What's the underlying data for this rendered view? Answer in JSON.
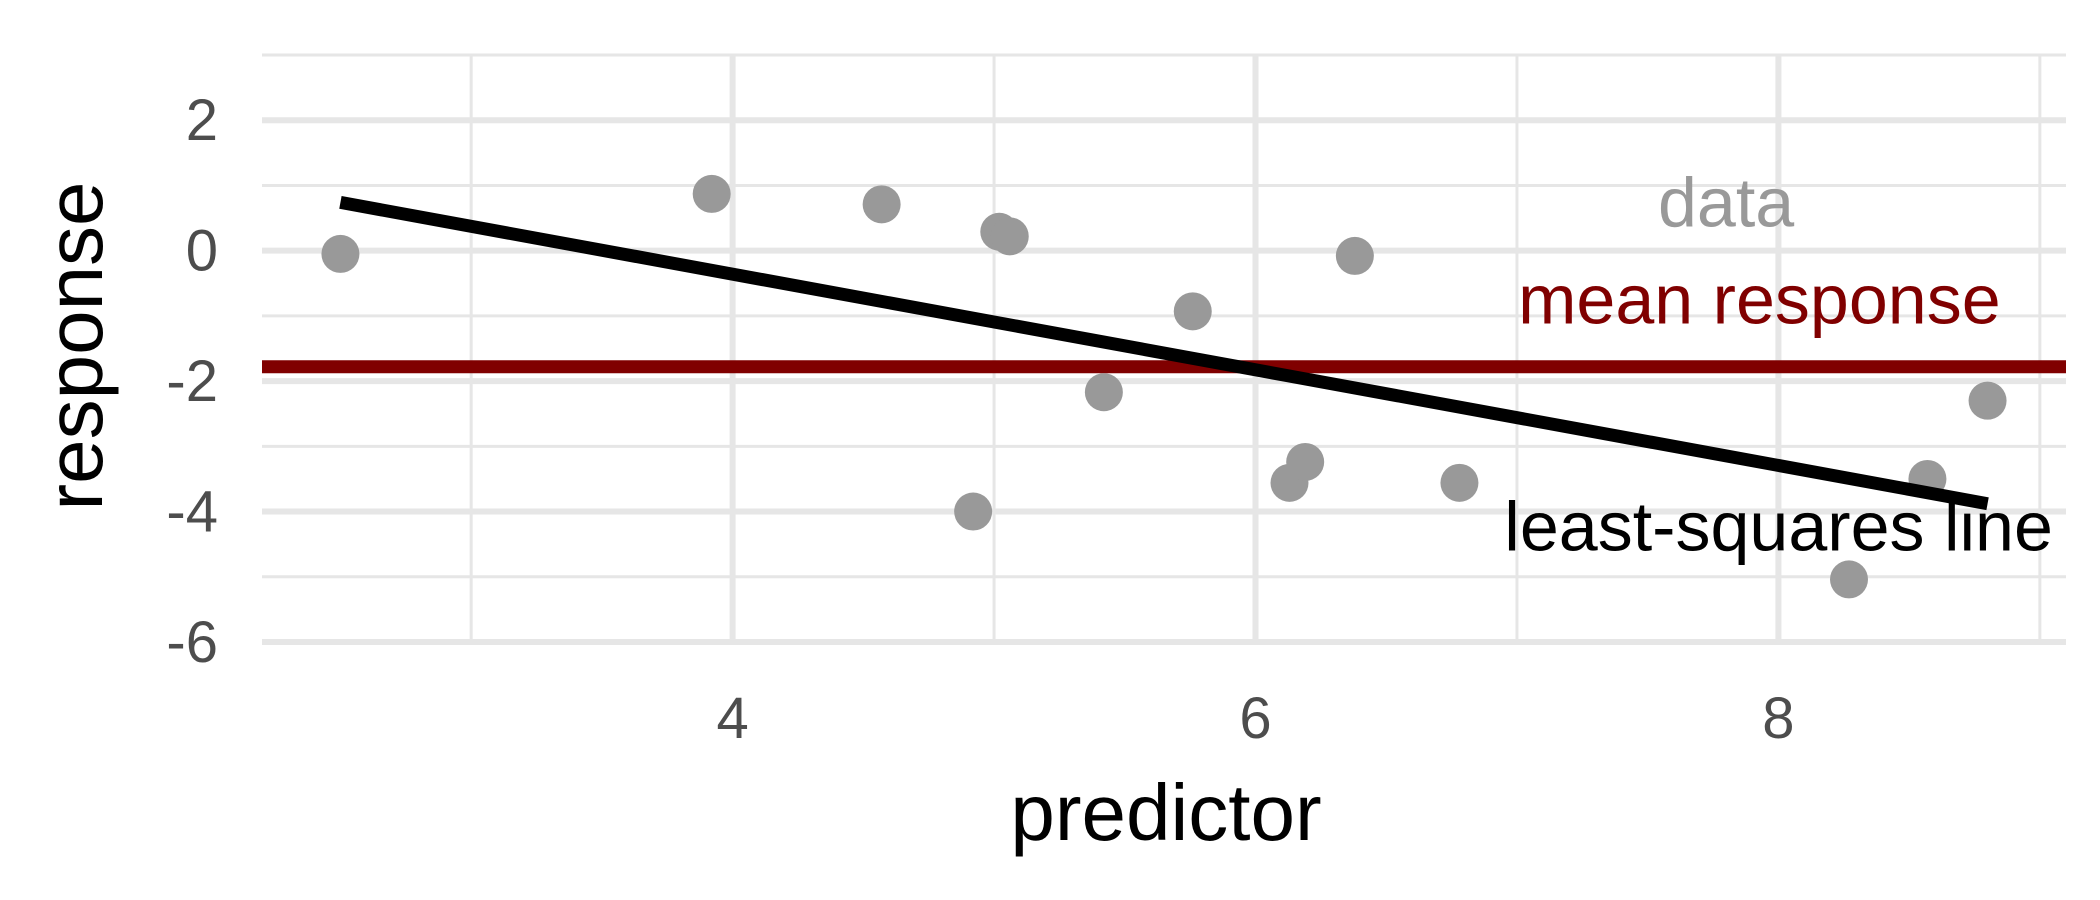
{
  "chart_data": {
    "type": "scatter",
    "title": "",
    "xlabel": "predictor",
    "ylabel": "response",
    "xlim": [
      2.2,
      9.1
    ],
    "ylim": [
      -6.0,
      3.0
    ],
    "x_ticks": [
      4,
      6,
      8
    ],
    "x_tick_labels": [
      "4",
      "6",
      "8"
    ],
    "x_minor_ticks": [
      3,
      5,
      7,
      9
    ],
    "y_ticks": [
      2,
      0,
      -2,
      -4,
      -6
    ],
    "y_tick_labels": [
      "2",
      "0",
      "-2",
      "-4",
      "-6"
    ],
    "y_minor_ticks": [
      3,
      1,
      -1,
      -3,
      -5
    ],
    "grid": true,
    "points": [
      {
        "x": 2.5,
        "y": -0.05
      },
      {
        "x": 3.92,
        "y": 0.87
      },
      {
        "x": 4.57,
        "y": 0.71
      },
      {
        "x": 4.92,
        "y": -4.0
      },
      {
        "x": 5.02,
        "y": 0.29
      },
      {
        "x": 5.06,
        "y": 0.22
      },
      {
        "x": 5.42,
        "y": -2.17
      },
      {
        "x": 5.76,
        "y": -0.93
      },
      {
        "x": 6.13,
        "y": -3.56
      },
      {
        "x": 6.19,
        "y": -3.24
      },
      {
        "x": 6.38,
        "y": -0.08
      },
      {
        "x": 6.78,
        "y": -3.56
      },
      {
        "x": 8.27,
        "y": -5.04
      },
      {
        "x": 8.57,
        "y": -3.5
      },
      {
        "x": 8.8,
        "y": -2.3
      }
    ],
    "mean_response": -1.78,
    "least_squares_line": {
      "x": [
        2.5,
        8.8
      ],
      "y": [
        0.74,
        -3.88
      ]
    },
    "annotations": [
      {
        "text": "data",
        "x": 7.8,
        "y": 0.37,
        "anchor": "middle",
        "color": "#999999"
      },
      {
        "text": "mean response",
        "x": 8.85,
        "y": -1.12,
        "anchor": "end",
        "color": "#800000"
      },
      {
        "text": "least-squares line",
        "x": 9.05,
        "y": -4.6,
        "anchor": "end",
        "color": "#000000"
      }
    ],
    "colors": {
      "points": "#999999",
      "mean_line": "#800000",
      "ls_line": "#000000",
      "grid": "#e6e6e6"
    }
  }
}
